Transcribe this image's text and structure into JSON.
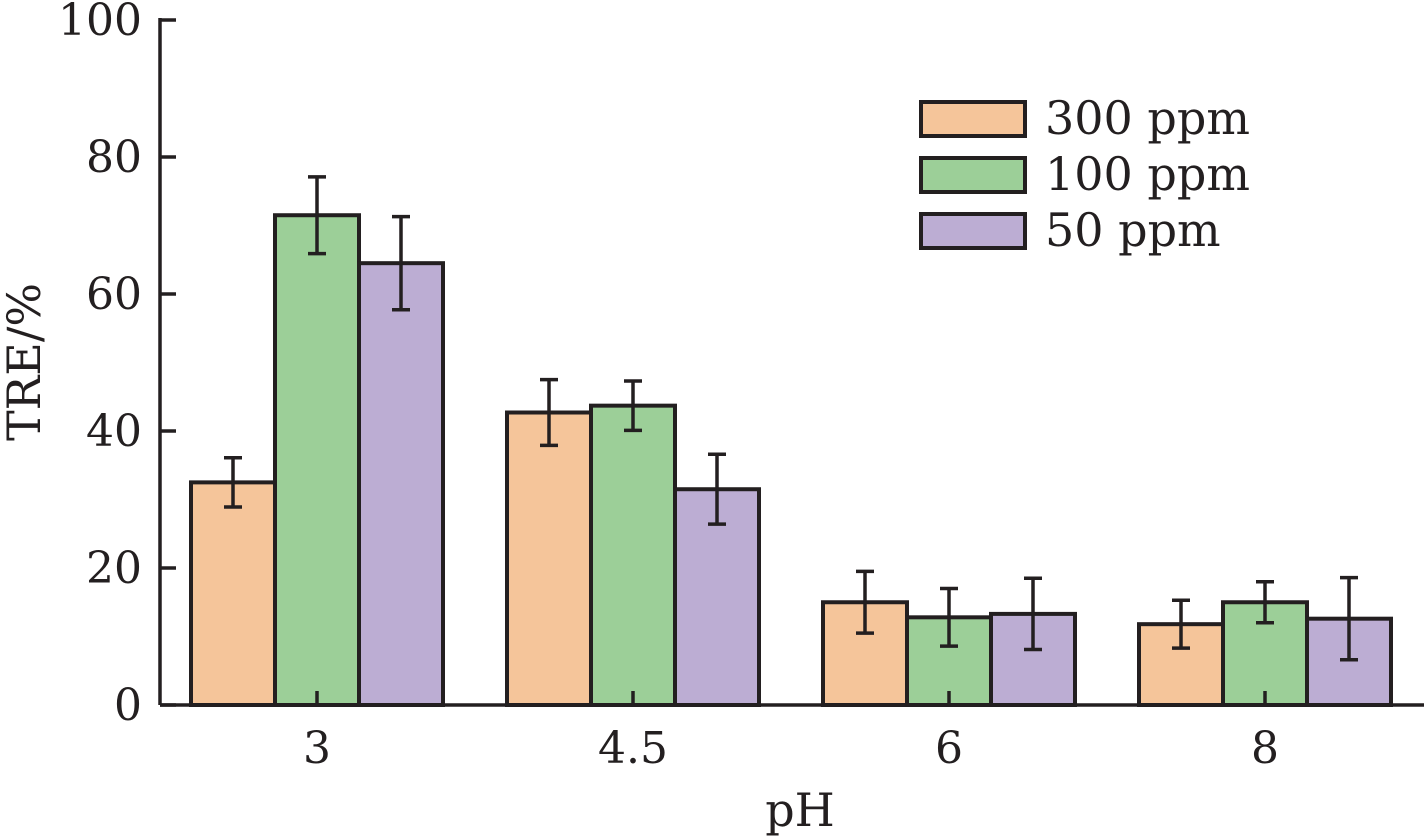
{
  "chart_data": {
    "type": "bar",
    "title": "",
    "xlabel": "pH",
    "ylabel": "TRE/%",
    "categories": [
      "3",
      "4.5",
      "6",
      "8"
    ],
    "ylim": [
      0,
      100
    ],
    "yticks": [
      0,
      20,
      40,
      60,
      80,
      100
    ],
    "legend_position": "top-right",
    "series": [
      {
        "name": "300 ppm",
        "color": "#f5c59a",
        "values": [
          32.5,
          42.7,
          15.0,
          11.8
        ],
        "errors": [
          3.6,
          4.8,
          4.5,
          3.5
        ]
      },
      {
        "name": "100 ppm",
        "color": "#9ccf98",
        "values": [
          71.5,
          43.7,
          12.8,
          15.0
        ],
        "errors": [
          5.6,
          3.6,
          4.2,
          3.0
        ]
      },
      {
        "name": "50 ppm",
        "color": "#bcadd3",
        "values": [
          64.5,
          31.5,
          13.3,
          12.6
        ],
        "errors": [
          6.8,
          5.1,
          5.2,
          6.0
        ]
      }
    ]
  }
}
